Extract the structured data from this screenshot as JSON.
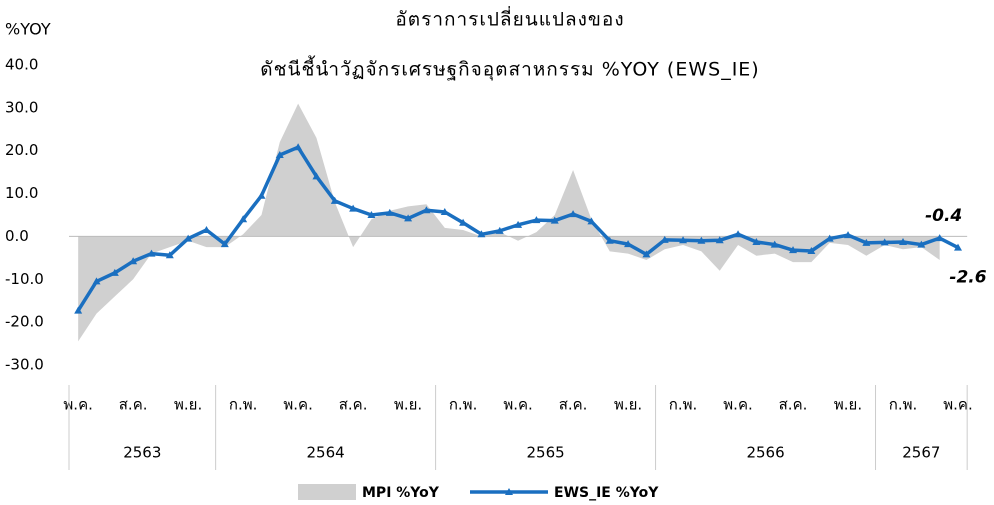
{
  "chart_data": {
    "type": "area_line",
    "title": [
      "อัตราการเปลี่ยนแปลงของ",
      "ดัชนีชี้นำวัฏจักรเศรษฐกิจอุตสาหกรรม %YOY (EWS_IE)"
    ],
    "y_label": "%YOY",
    "categories": [
      "พ.ค.",
      null,
      null,
      "ส.ค.",
      null,
      null,
      "พ.ย.",
      null,
      null,
      "ก.พ.",
      null,
      null,
      "พ.ค.",
      null,
      null,
      "ส.ค.",
      null,
      null,
      "พ.ย.",
      null,
      null,
      "ก.พ.",
      null,
      null,
      "พ.ค.",
      null,
      null,
      "ส.ค.",
      null,
      null,
      "พ.ย.",
      null,
      null,
      "ก.พ.",
      null,
      null,
      "พ.ค.",
      null,
      null,
      "ส.ค.",
      null,
      null,
      "พ.ย.",
      null,
      null,
      "ก.พ.",
      null,
      null,
      "พ.ค."
    ],
    "group_labels": [
      "2563",
      "2564",
      "2565",
      "2566",
      "2567"
    ],
    "group_sizes": [
      8,
      12,
      12,
      12,
      5
    ],
    "ylim": [
      -30,
      40
    ],
    "yticks": [
      {
        "value": -30,
        "label": "-30.0"
      },
      {
        "value": -20,
        "label": "-20.0"
      },
      {
        "value": -10,
        "label": "-10.0"
      },
      {
        "value": 0,
        "label": "0.0"
      },
      {
        "value": 10,
        "label": "10.0"
      },
      {
        "value": 20,
        "label": "20.0"
      },
      {
        "value": 30,
        "label": "30.0"
      },
      {
        "value": 40,
        "label": "40.0"
      }
    ],
    "series": [
      {
        "name": "MPI %YoY",
        "kind": "area",
        "color": "#d0d0d0",
        "values": [
          -24.5,
          -18,
          -14,
          -10,
          -4,
          -2.5,
          -1,
          -2.5,
          -2.5,
          0.5,
          5,
          22,
          31,
          23,
          8,
          -2.5,
          4,
          6,
          7,
          7.5,
          2,
          1.5,
          0,
          1,
          -1,
          1,
          5,
          15.5,
          4,
          -3.5,
          -4,
          -5.5,
          -3,
          -2,
          -3.5,
          -8,
          -2,
          -4.5,
          -4,
          -6,
          -6,
          -1.5,
          -2,
          -4.5,
          -2,
          -3,
          -2.5,
          -5.5,
          null
        ]
      },
      {
        "name": "EWS_IE %YoY",
        "kind": "line",
        "color": "#1a6fc0",
        "values": [
          -17.3,
          -10.5,
          -8.5,
          -5.8,
          -4.0,
          -4.4,
          -0.5,
          1.5,
          -1.8,
          4.0,
          9.5,
          19.0,
          20.8,
          14.0,
          8.3,
          6.5,
          5.0,
          5.5,
          4.2,
          6.1,
          5.7,
          3.2,
          0.5,
          1.3,
          2.7,
          3.8,
          3.7,
          5.2,
          3.5,
          -1.0,
          -1.8,
          -4.2,
          -0.8,
          -0.9,
          -1.0,
          -0.9,
          0.5,
          -1.3,
          -1.9,
          -3.2,
          -3.4,
          -0.5,
          0.3,
          -1.5,
          -1.4,
          -1.3,
          -1.9,
          -0.4,
          -2.6
        ],
        "value_labels": [
          null,
          null,
          null,
          null,
          null,
          null,
          null,
          null,
          null,
          null,
          null,
          null,
          null,
          null,
          null,
          null,
          null,
          null,
          null,
          null,
          null,
          null,
          null,
          null,
          null,
          null,
          null,
          null,
          null,
          null,
          null,
          null,
          null,
          null,
          null,
          null,
          null,
          null,
          null,
          null,
          null,
          null,
          null,
          null,
          null,
          null,
          null,
          "-0.4",
          "-2.6"
        ]
      }
    ]
  }
}
